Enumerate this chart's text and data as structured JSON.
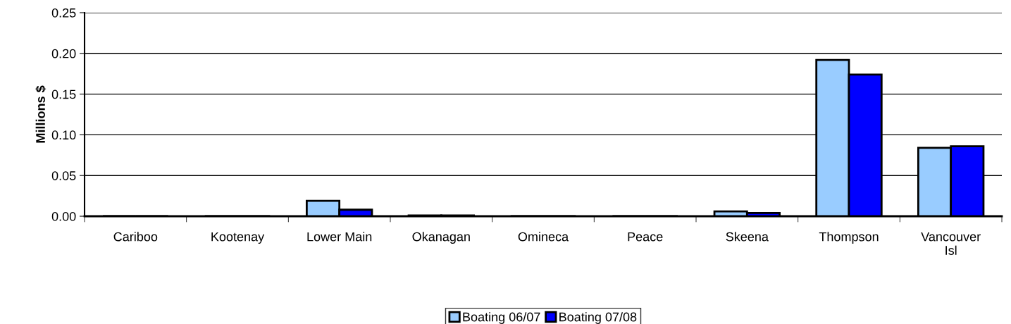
{
  "chart_data": {
    "type": "bar",
    "ylabel": "Millions $",
    "categories": [
      "Cariboo",
      "Kootenay",
      "Lower Main",
      "Okanagan",
      "Omineca",
      "Peace",
      "Skeena",
      "Thompson",
      "Vancouver\nIsl"
    ],
    "series": [
      {
        "name": "Boating 06/07",
        "color": "#99ccff",
        "values": [
          0,
          0,
          0.019,
          0.001,
          0,
          0,
          0.006,
          0.192,
          0.084
        ]
      },
      {
        "name": "Boating 07/08",
        "color": "#0000ff",
        "values": [
          0,
          0,
          0.008,
          0.001,
          0,
          0,
          0.004,
          0.174,
          0.086
        ]
      }
    ],
    "ylim": [
      0,
      0.25
    ],
    "yticks": [
      {
        "value": 0,
        "label": "0.00"
      },
      {
        "value": 0.05,
        "label": "0.05"
      },
      {
        "value": 0.1,
        "label": "0.10"
      },
      {
        "value": 0.15,
        "label": "0.15"
      },
      {
        "value": 0.2,
        "label": "0.20"
      },
      {
        "value": 0.25,
        "label": "0.25"
      }
    ],
    "grid": "y",
    "legend": "bottom"
  }
}
